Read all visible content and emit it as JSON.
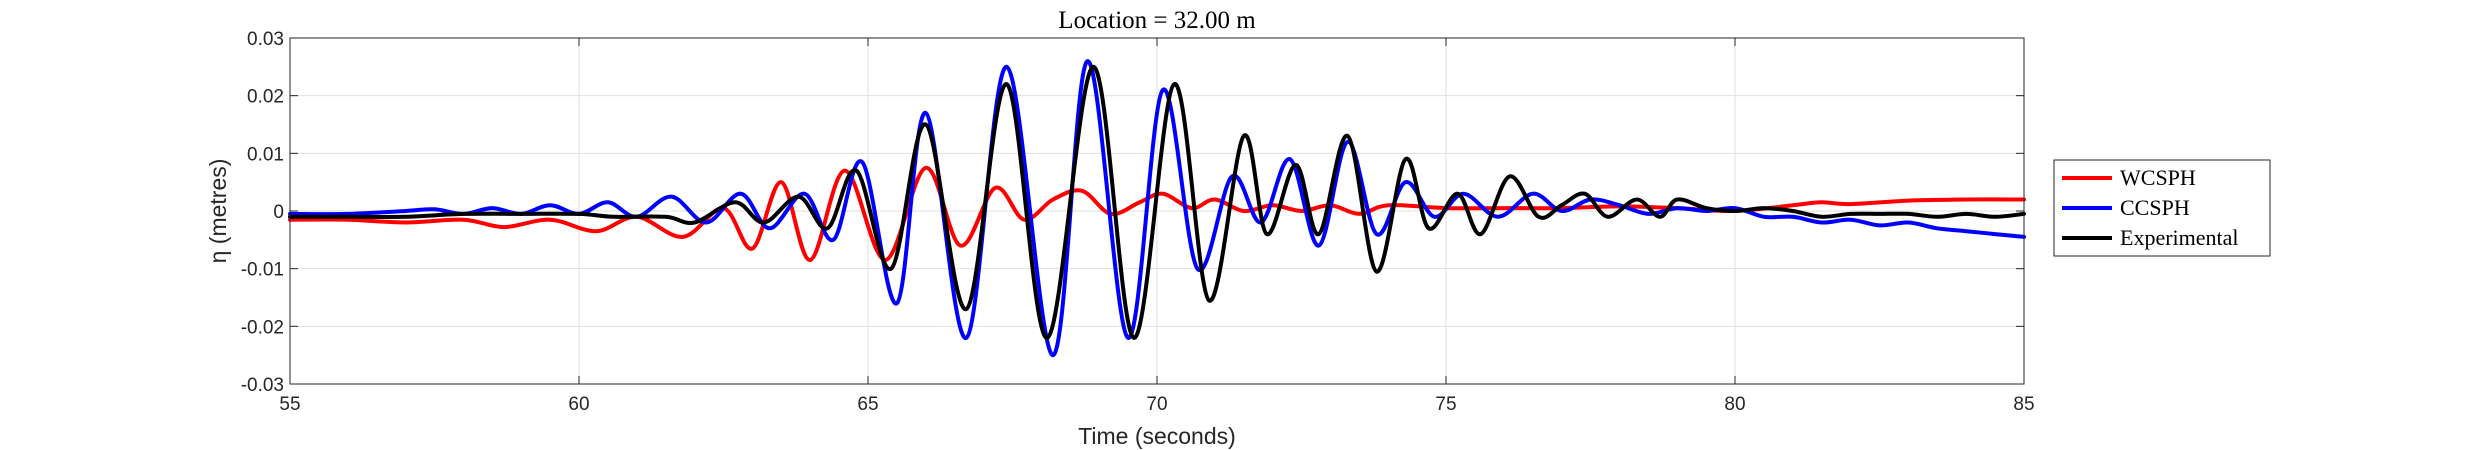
{
  "chart_data": {
    "type": "line",
    "title": "Location = 32.00 m",
    "xlabel": "Time (seconds)",
    "ylabel": "η (metres)",
    "xlim": [
      55,
      85
    ],
    "ylim": [
      -0.03,
      0.03
    ],
    "xticks": [
      55,
      60,
      65,
      70,
      75,
      80,
      85
    ],
    "xtick_labels": [
      "55",
      "60",
      "65",
      "70",
      "75",
      "80",
      "85"
    ],
    "yticks": [
      -0.03,
      -0.02,
      -0.01,
      0,
      0.01,
      0.02,
      0.03
    ],
    "ytick_labels": [
      "-0.03",
      "-0.02",
      "-0.01",
      "0",
      "0.01",
      "0.02",
      "0.03"
    ],
    "grid": true,
    "legend_position": "outside-right",
    "series": [
      {
        "name": "WCSPH",
        "color": "#ff0000",
        "points": [
          [
            55,
            -0.0015
          ],
          [
            56,
            -0.0015
          ],
          [
            57,
            -0.002
          ],
          [
            58,
            -0.0015
          ],
          [
            58.7,
            -0.0028
          ],
          [
            59.5,
            -0.0015
          ],
          [
            60.3,
            -0.0035
          ],
          [
            61,
            -0.001
          ],
          [
            61.8,
            -0.0045
          ],
          [
            62.5,
            0.0005
          ],
          [
            63,
            -0.0065
          ],
          [
            63.5,
            0.005
          ],
          [
            64,
            -0.0085
          ],
          [
            64.6,
            0.007
          ],
          [
            65.3,
            -0.0085
          ],
          [
            66,
            0.0075
          ],
          [
            66.6,
            -0.006
          ],
          [
            67.2,
            0.004
          ],
          [
            67.7,
            -0.0015
          ],
          [
            68.2,
            0.002
          ],
          [
            68.7,
            0.0035
          ],
          [
            69.2,
            -0.0005
          ],
          [
            69.7,
            0.0015
          ],
          [
            70.1,
            0.003
          ],
          [
            70.6,
            0.0005
          ],
          [
            71,
            0.002
          ],
          [
            71.5,
            0
          ],
          [
            72,
            0.001
          ],
          [
            72.5,
            0
          ],
          [
            73,
            0.001
          ],
          [
            73.5,
            -0.0005
          ],
          [
            74,
            0.001
          ],
          [
            75,
            0.0005
          ],
          [
            76,
            0.0005
          ],
          [
            77,
            0.0005
          ],
          [
            78,
            0.0008
          ],
          [
            79,
            0.0005
          ],
          [
            80,
            0
          ],
          [
            81,
            0.001
          ],
          [
            81.5,
            0.0015
          ],
          [
            82,
            0.0012
          ],
          [
            83,
            0.0018
          ],
          [
            84,
            0.002
          ],
          [
            85,
            0.002
          ]
        ]
      },
      {
        "name": "CCSPH",
        "color": "#0000ff",
        "points": [
          [
            55,
            -0.0005
          ],
          [
            56,
            -0.0005
          ],
          [
            57,
            0
          ],
          [
            57.5,
            0.0003
          ],
          [
            58,
            -0.0005
          ],
          [
            58.5,
            0.0005
          ],
          [
            59,
            -0.0005
          ],
          [
            59.5,
            0.001
          ],
          [
            60,
            -0.0005
          ],
          [
            60.5,
            0.0015
          ],
          [
            61,
            -0.001
          ],
          [
            61.6,
            0.0025
          ],
          [
            62.2,
            -0.002
          ],
          [
            62.8,
            0.003
          ],
          [
            63.3,
            -0.003
          ],
          [
            63.9,
            0.003
          ],
          [
            64.4,
            -0.005
          ],
          [
            64.9,
            0.0085
          ],
          [
            65.5,
            -0.016
          ],
          [
            66,
            0.017
          ],
          [
            66.7,
            -0.022
          ],
          [
            67.4,
            0.025
          ],
          [
            68.2,
            -0.025
          ],
          [
            68.8,
            0.026
          ],
          [
            69.5,
            -0.022
          ],
          [
            70.1,
            0.021
          ],
          [
            70.7,
            -0.01
          ],
          [
            71.3,
            0.006
          ],
          [
            71.8,
            -0.002
          ],
          [
            72.3,
            0.009
          ],
          [
            72.8,
            -0.006
          ],
          [
            73.3,
            0.012
          ],
          [
            73.8,
            -0.004
          ],
          [
            74.3,
            0.005
          ],
          [
            74.8,
            -0.001
          ],
          [
            75.3,
            0.003
          ],
          [
            75.9,
            -0.001
          ],
          [
            76.5,
            0.003
          ],
          [
            77,
            0
          ],
          [
            77.5,
            0.002
          ],
          [
            78,
            0.001
          ],
          [
            78.5,
            -0.0005
          ],
          [
            79,
            0.0005
          ],
          [
            79.5,
            0
          ],
          [
            80,
            0.0005
          ],
          [
            80.5,
            -0.001
          ],
          [
            81,
            -0.001
          ],
          [
            81.5,
            -0.002
          ],
          [
            82,
            -0.0015
          ],
          [
            82.5,
            -0.0025
          ],
          [
            83,
            -0.002
          ],
          [
            83.5,
            -0.003
          ],
          [
            84,
            -0.0035
          ],
          [
            84.5,
            -0.004
          ],
          [
            85,
            -0.0045
          ]
        ]
      },
      {
        "name": "Experimental",
        "color": "#000000",
        "points": [
          [
            55,
            -0.001
          ],
          [
            56,
            -0.001
          ],
          [
            57,
            -0.001
          ],
          [
            58,
            -0.0005
          ],
          [
            59,
            -0.0005
          ],
          [
            60,
            -0.0005
          ],
          [
            60.6,
            -0.001
          ],
          [
            61.5,
            -0.001
          ],
          [
            62,
            -0.002
          ],
          [
            62.7,
            0.0015
          ],
          [
            63.2,
            -0.002
          ],
          [
            63.8,
            0.0025
          ],
          [
            64.3,
            -0.003
          ],
          [
            64.8,
            0.007
          ],
          [
            65.4,
            -0.01
          ],
          [
            66,
            0.015
          ],
          [
            66.7,
            -0.017
          ],
          [
            67.4,
            0.022
          ],
          [
            68.1,
            -0.022
          ],
          [
            68.9,
            0.025
          ],
          [
            69.6,
            -0.022
          ],
          [
            70.3,
            0.022
          ],
          [
            70.9,
            -0.0155
          ],
          [
            71.5,
            0.013
          ],
          [
            71.9,
            -0.004
          ],
          [
            72.4,
            0.008
          ],
          [
            72.8,
            -0.004
          ],
          [
            73.3,
            0.013
          ],
          [
            73.8,
            -0.0105
          ],
          [
            74.3,
            0.009
          ],
          [
            74.7,
            -0.003
          ],
          [
            75.2,
            0.003
          ],
          [
            75.6,
            -0.004
          ],
          [
            76.1,
            0.006
          ],
          [
            76.6,
            -0.001
          ],
          [
            77,
            0.001
          ],
          [
            77.4,
            0.003
          ],
          [
            77.8,
            -0.001
          ],
          [
            78.3,
            0.002
          ],
          [
            78.7,
            -0.001
          ],
          [
            79,
            0.002
          ],
          [
            79.5,
            0.0005
          ],
          [
            80,
            0
          ],
          [
            80.5,
            0.0005
          ],
          [
            81,
            0
          ],
          [
            81.5,
            -0.001
          ],
          [
            82,
            -0.0005
          ],
          [
            82.5,
            -0.0005
          ],
          [
            83,
            -0.0005
          ],
          [
            83.5,
            -0.001
          ],
          [
            84,
            -0.0005
          ],
          [
            84.5,
            -0.001
          ],
          [
            85,
            -0.0005
          ]
        ]
      }
    ]
  }
}
